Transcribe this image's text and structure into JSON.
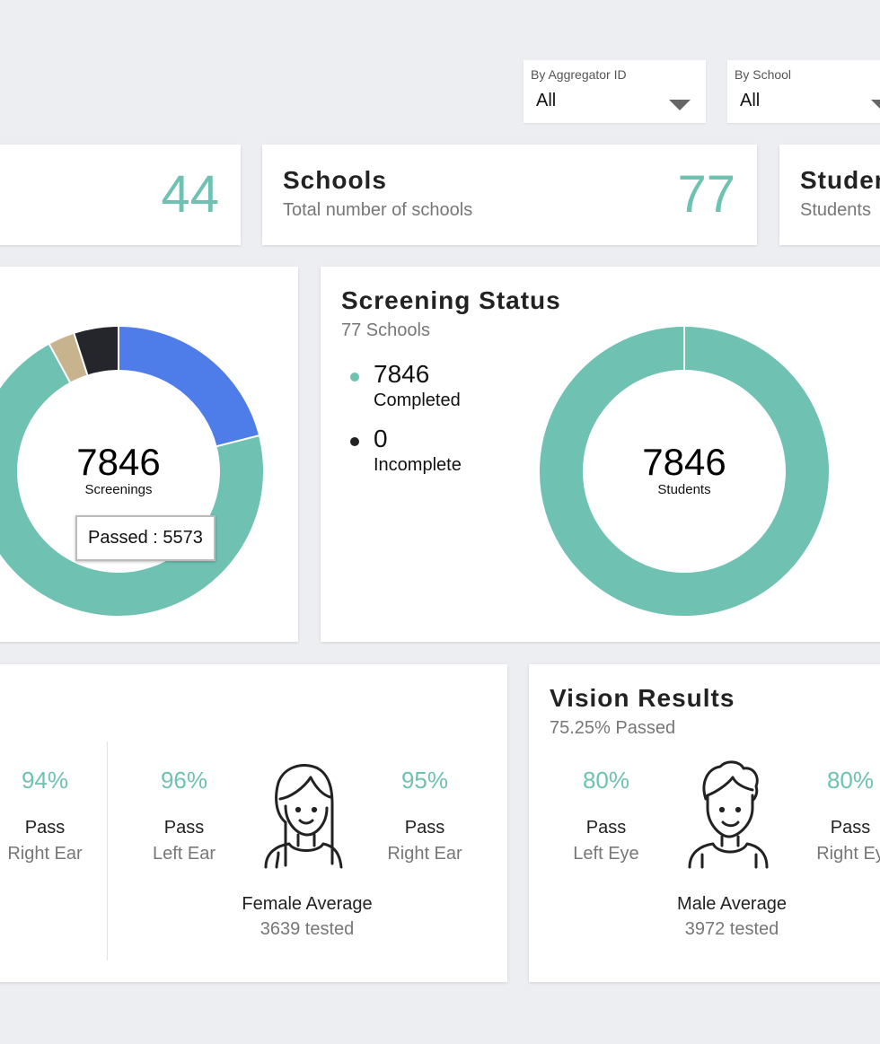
{
  "filters": {
    "aggregator": {
      "label": "By Aggregator ID",
      "value": "All"
    },
    "school": {
      "label": "By School",
      "value": "All"
    }
  },
  "stats": {
    "first": {
      "value": "44"
    },
    "schools": {
      "title": "Schools",
      "subtitle": "Total number of schools",
      "value": "77"
    },
    "students": {
      "title": "Studen",
      "subtitle": "Students"
    }
  },
  "screening_results": {
    "center_value": "7846",
    "center_label": "Screenings",
    "tooltip": "Passed : 5573"
  },
  "screening_status": {
    "title": "Screening Status",
    "subtitle": "77 Schools",
    "legend": [
      {
        "value": "7846",
        "label": "Completed",
        "color": "#6fc1b2"
      },
      {
        "value": "0",
        "label": "Incomplete",
        "color": "#222222"
      }
    ],
    "center_value": "7846",
    "center_label": "Students"
  },
  "chart_data": [
    {
      "type": "pie",
      "title": "",
      "center_text": "7846 Screenings",
      "series": [
        {
          "name": "Passed",
          "value": 5573,
          "color": "#6fc1b2"
        },
        {
          "name": "Blue segment",
          "value": 1650,
          "color": "#4e7ce8"
        },
        {
          "name": "Black segment",
          "value": 390,
          "color": "#25262b"
        },
        {
          "name": "Tan segment",
          "value": 233,
          "color": "#c7b38e"
        }
      ]
    },
    {
      "type": "pie",
      "title": "Screening Status",
      "center_text": "7846 Students",
      "series": [
        {
          "name": "Completed",
          "value": 7846,
          "color": "#6fc1b2"
        },
        {
          "name": "Incomplete",
          "value": 0,
          "color": "#222222"
        }
      ]
    }
  ],
  "hearing": {
    "right_ear_1": {
      "pct": "94%",
      "pass": "Pass",
      "side": "Right Ear"
    },
    "left_ear": {
      "pct": "96%",
      "pass": "Pass",
      "side": "Left Ear"
    },
    "right_ear_2": {
      "pct": "95%",
      "pass": "Pass",
      "side": "Right Ear"
    },
    "average": "Female Average",
    "tested": "3639 tested"
  },
  "vision": {
    "title": "Vision Results",
    "subtitle": "75.25% Passed",
    "left_eye": {
      "pct": "80%",
      "pass": "Pass",
      "side": "Left Eye"
    },
    "right_eye": {
      "pct": "80%",
      "pass": "Pass",
      "side": "Right Ey"
    },
    "average": "Male Average",
    "tested": "3972 tested"
  }
}
